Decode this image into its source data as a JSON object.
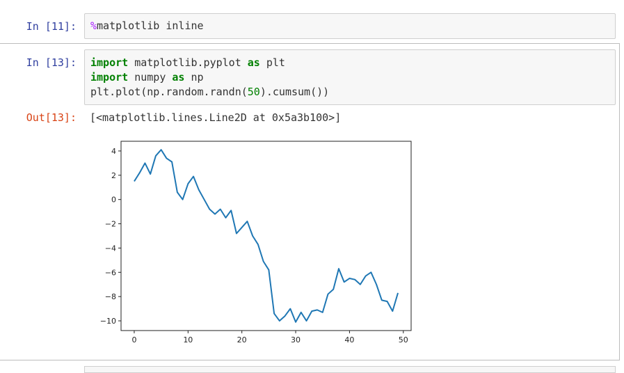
{
  "cells": [
    {
      "prompt": "In  [11]:",
      "code": {
        "line1_magic": "%",
        "line1_rest": "matplotlib inline"
      }
    },
    {
      "prompt": "In  [13]:",
      "code": {
        "l1_kw1": "import",
        "l1_mod": " matplotlib.pyplot ",
        "l1_kw2": "as",
        "l1_alias": " plt",
        "l2_kw1": "import",
        "l2_mod": " numpy ",
        "l2_kw2": "as",
        "l2_alias": " np",
        "l3_a": "plt.plot(np.random.randn(",
        "l3_num": "50",
        "l3_b": ").cumsum())"
      },
      "out_prompt": "Out[13]:",
      "out_text": "[<matplotlib.lines.Line2D at 0x5a3b100>]"
    }
  ],
  "chart_data": {
    "type": "line",
    "title": "",
    "xlabel": "",
    "ylabel": "",
    "xlim": [
      -2.45,
      51.45
    ],
    "ylim": [
      -10.8,
      4.8
    ],
    "xticks": [
      0,
      10,
      20,
      30,
      40,
      50
    ],
    "yticks": [
      4,
      2,
      0,
      -2,
      -4,
      -6,
      -8,
      -10
    ],
    "xtick_labels": [
      "0",
      "10",
      "20",
      "30",
      "40",
      "50"
    ],
    "ytick_labels": [
      "4",
      "2",
      "0",
      "−2",
      "−4",
      "−6",
      "−8",
      "−10"
    ],
    "grid": false,
    "color": "#1f77b4",
    "series": [
      {
        "x": [
          0,
          1,
          2,
          3,
          4,
          5,
          6,
          7,
          8,
          9,
          10,
          11,
          12,
          13,
          14,
          15,
          16,
          17,
          18,
          19,
          20,
          21,
          22,
          23,
          24,
          25,
          26,
          27,
          28,
          29,
          30,
          31,
          32,
          33,
          34,
          35,
          36,
          37,
          38,
          39,
          40,
          41,
          42,
          43,
          44,
          45,
          46,
          47,
          48,
          49
        ],
        "values": [
          1.5,
          2.2,
          3.0,
          2.1,
          3.6,
          4.1,
          3.4,
          3.1,
          0.6,
          0.0,
          1.3,
          1.9,
          0.8,
          0.0,
          -0.8,
          -1.2,
          -0.8,
          -1.5,
          -0.9,
          -2.8,
          -2.3,
          -1.8,
          -3.0,
          -3.7,
          -5.1,
          -5.8,
          -9.4,
          -10.0,
          -9.6,
          -9.0,
          -10.1,
          -9.3,
          -10.0,
          -9.2,
          -9.1,
          -9.3,
          -7.8,
          -7.4,
          -5.7,
          -6.8,
          -6.5,
          -6.6,
          -7.0,
          -6.3,
          -6.0,
          -7.0,
          -8.3,
          -8.4,
          -9.2,
          -7.7
        ]
      }
    ]
  }
}
